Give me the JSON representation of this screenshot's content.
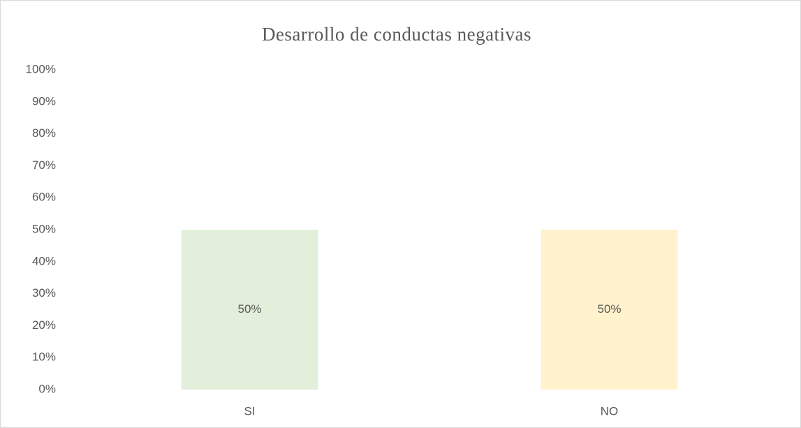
{
  "chart_data": {
    "type": "bar",
    "title": "Desarrollo de conductas negativas",
    "categories": [
      "SI",
      "NO"
    ],
    "values": [
      50,
      50
    ],
    "value_labels": [
      "50%",
      "50%"
    ],
    "colors": [
      "#e2efda",
      "#fff2cc"
    ],
    "ylim": [
      0,
      100
    ],
    "yticks": [
      {
        "value": 0,
        "label": "0%"
      },
      {
        "value": 10,
        "label": "10%"
      },
      {
        "value": 20,
        "label": "20%"
      },
      {
        "value": 30,
        "label": "30%"
      },
      {
        "value": 40,
        "label": "40%"
      },
      {
        "value": 50,
        "label": "50%"
      },
      {
        "value": 60,
        "label": "60%"
      },
      {
        "value": 70,
        "label": "70%"
      },
      {
        "value": 80,
        "label": "80%"
      },
      {
        "value": 90,
        "label": "90%"
      },
      {
        "value": 100,
        "label": "100%"
      }
    ],
    "grid": false
  }
}
